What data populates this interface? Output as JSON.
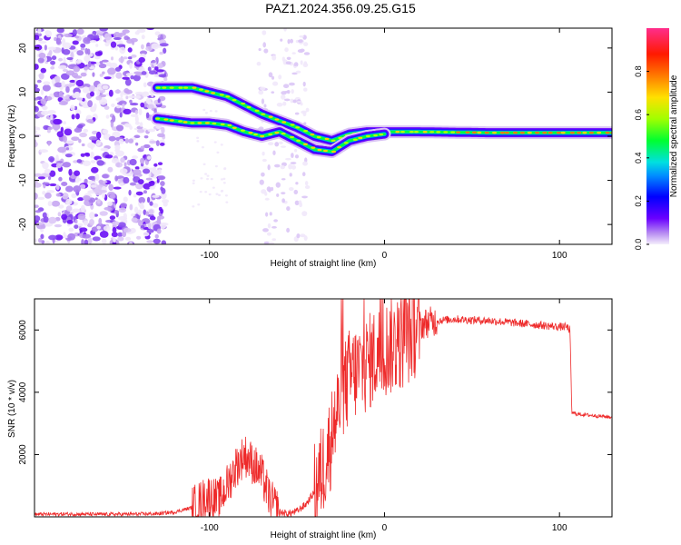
{
  "title": "PAZ1.2024.356.09.25.G15",
  "colors": {
    "snr_line": "#ee2a2a",
    "colormap": [
      "#f4eefc",
      "#d9c2f5",
      "#a772ee",
      "#6a00ff",
      "#1a1aff",
      "#00a6ff",
      "#00e5d0",
      "#00ff40",
      "#b8ff00",
      "#ffd200",
      "#ff7a00",
      "#ff2a00",
      "#ff2080",
      "#ff60b0"
    ]
  },
  "chart_data": [
    {
      "id": "spectrogram",
      "type": "heatmap",
      "title": "PAZ1.2024.356.09.25.G15",
      "xlabel": "Height of straight line (km)",
      "ylabel": "Frequency (Hz)",
      "xlim": [
        -200,
        130
      ],
      "ylim": [
        -24.5,
        24.5
      ],
      "xticks": [
        -100,
        0,
        100
      ],
      "xtick_labels": [
        "-100",
        "0",
        "100"
      ],
      "yticks": [
        -20,
        -10,
        0,
        10,
        20
      ],
      "ytick_labels": [
        "-20",
        "-10",
        "0",
        "10",
        "20"
      ],
      "colorbar": {
        "label": "Normalized spectral amplitude",
        "range": [
          0.0,
          1.0
        ],
        "ticks": [
          0.0,
          0.2,
          0.4,
          0.6,
          0.8
        ],
        "tick_labels": [
          "0.0",
          "0.2",
          "0.4",
          "0.6",
          "0.8"
        ]
      },
      "tracks": [
        {
          "name": "upper",
          "points": [
            [
              -130,
              11
            ],
            [
              -120,
              11
            ],
            [
              -110,
              11
            ],
            [
              -100,
              10
            ],
            [
              -90,
              9
            ],
            [
              -80,
              7
            ],
            [
              -70,
              5
            ],
            [
              -60,
              3.5
            ],
            [
              -50,
              2
            ],
            [
              -40,
              0
            ],
            [
              -30,
              -1
            ],
            [
              -20,
              0.5
            ],
            [
              -10,
              1
            ],
            [
              0,
              1
            ],
            [
              20,
              1
            ],
            [
              60,
              0.8
            ],
            [
              100,
              0.8
            ],
            [
              130,
              0.8
            ]
          ]
        },
        {
          "name": "lower",
          "points": [
            [
              -130,
              4
            ],
            [
              -120,
              3.5
            ],
            [
              -110,
              3
            ],
            [
              -100,
              3
            ],
            [
              -90,
              2.5
            ],
            [
              -80,
              1
            ],
            [
              -70,
              0
            ],
            [
              -60,
              1
            ],
            [
              -50,
              -1
            ],
            [
              -40,
              -3
            ],
            [
              -30,
              -3.5
            ],
            [
              -20,
              -1
            ],
            [
              -10,
              0
            ],
            [
              0,
              0.5
            ]
          ]
        }
      ]
    },
    {
      "id": "snr",
      "type": "line",
      "xlabel": "Height of straight line (km)",
      "ylabel": "SNR (10 * v/v)",
      "xlim": [
        -200,
        130
      ],
      "ylim": [
        0,
        7000
      ],
      "xticks": [
        -100,
        0,
        100
      ],
      "xtick_labels": [
        "-100",
        "0",
        "100"
      ],
      "yticks": [
        2000,
        4000,
        6000
      ],
      "ytick_labels": [
        "2000",
        "4000",
        "6000"
      ],
      "series": [
        {
          "x": [
            -200,
            -180,
            -160,
            -140,
            -130,
            -120,
            -110,
            -105,
            -100,
            -95,
            -90,
            -85,
            -80,
            -75,
            -70,
            -65,
            -60,
            -55,
            -50,
            -45,
            -40,
            -35,
            -30,
            -25,
            -20,
            -15,
            -10,
            -5,
            0,
            5,
            10,
            15,
            20,
            25,
            30,
            40,
            50,
            60,
            70,
            80,
            90,
            100,
            104,
            106,
            107,
            110,
            120,
            130
          ],
          "y": [
            80,
            90,
            80,
            90,
            100,
            150,
            300,
            500,
            700,
            500,
            1000,
            1600,
            2000,
            1700,
            1300,
            500,
            150,
            100,
            180,
            400,
            800,
            1600,
            2600,
            3800,
            4500,
            4700,
            4900,
            5200,
            5400,
            5500,
            5650,
            5900,
            6150,
            6250,
            6300,
            6350,
            6320,
            6300,
            6250,
            6200,
            6150,
            6100,
            6100,
            6000,
            3350,
            3300,
            3250,
            3200
          ]
        }
      ]
    }
  ]
}
